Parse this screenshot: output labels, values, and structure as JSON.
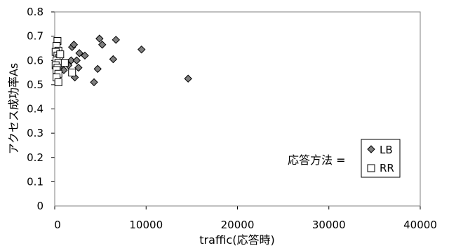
{
  "chart_data": {
    "type": "scatter",
    "title": "",
    "xlabel": "traffic(応答時)",
    "ylabel": "アクセス成功率As",
    "xlim": [
      0,
      40000
    ],
    "ylim": [
      0,
      0.8
    ],
    "xticks": [
      "0",
      "10000",
      "20000",
      "30000",
      "40000"
    ],
    "yticks": [
      "0",
      "0.1",
      "0.2",
      "0.3",
      "0.4",
      "0.5",
      "0.6",
      "0.7",
      "0.8"
    ],
    "grid": false,
    "legend": {
      "title": "応答方法 =",
      "placement": "bottom-right"
    },
    "series": [
      {
        "name": "LB",
        "marker": "diamond",
        "color": "#7f7f7f",
        "points": [
          {
            "x": 200,
            "y": 0.66
          },
          {
            "x": 300,
            "y": 0.63
          },
          {
            "x": 500,
            "y": 0.59
          },
          {
            "x": 700,
            "y": 0.57
          },
          {
            "x": 1000,
            "y": 0.56
          },
          {
            "x": 1500,
            "y": 0.58
          },
          {
            "x": 1800,
            "y": 0.6
          },
          {
            "x": 1900,
            "y": 0.655
          },
          {
            "x": 2100,
            "y": 0.665
          },
          {
            "x": 2200,
            "y": 0.53
          },
          {
            "x": 2400,
            "y": 0.6
          },
          {
            "x": 2600,
            "y": 0.57
          },
          {
            "x": 2700,
            "y": 0.63
          },
          {
            "x": 3300,
            "y": 0.62
          },
          {
            "x": 4300,
            "y": 0.51
          },
          {
            "x": 4700,
            "y": 0.565
          },
          {
            "x": 4900,
            "y": 0.69
          },
          {
            "x": 5200,
            "y": 0.665
          },
          {
            "x": 6400,
            "y": 0.605
          },
          {
            "x": 6700,
            "y": 0.685
          },
          {
            "x": 9500,
            "y": 0.645
          },
          {
            "x": 14600,
            "y": 0.525
          }
        ]
      },
      {
        "name": "RR",
        "marker": "square",
        "color": "#ffffff",
        "points": [
          {
            "x": 300,
            "y": 0.68
          },
          {
            "x": 200,
            "y": 0.66
          },
          {
            "x": 400,
            "y": 0.64
          },
          {
            "x": 100,
            "y": 0.635
          },
          {
            "x": 300,
            "y": 0.62
          },
          {
            "x": 500,
            "y": 0.61
          },
          {
            "x": 200,
            "y": 0.6
          },
          {
            "x": 400,
            "y": 0.59
          },
          {
            "x": 100,
            "y": 0.58
          },
          {
            "x": 300,
            "y": 0.57
          },
          {
            "x": 200,
            "y": 0.56
          },
          {
            "x": 400,
            "y": 0.545
          },
          {
            "x": 200,
            "y": 0.53
          },
          {
            "x": 400,
            "y": 0.51
          },
          {
            "x": 1100,
            "y": 0.59
          },
          {
            "x": 1900,
            "y": 0.55
          },
          {
            "x": 600,
            "y": 0.625
          }
        ]
      }
    ]
  }
}
